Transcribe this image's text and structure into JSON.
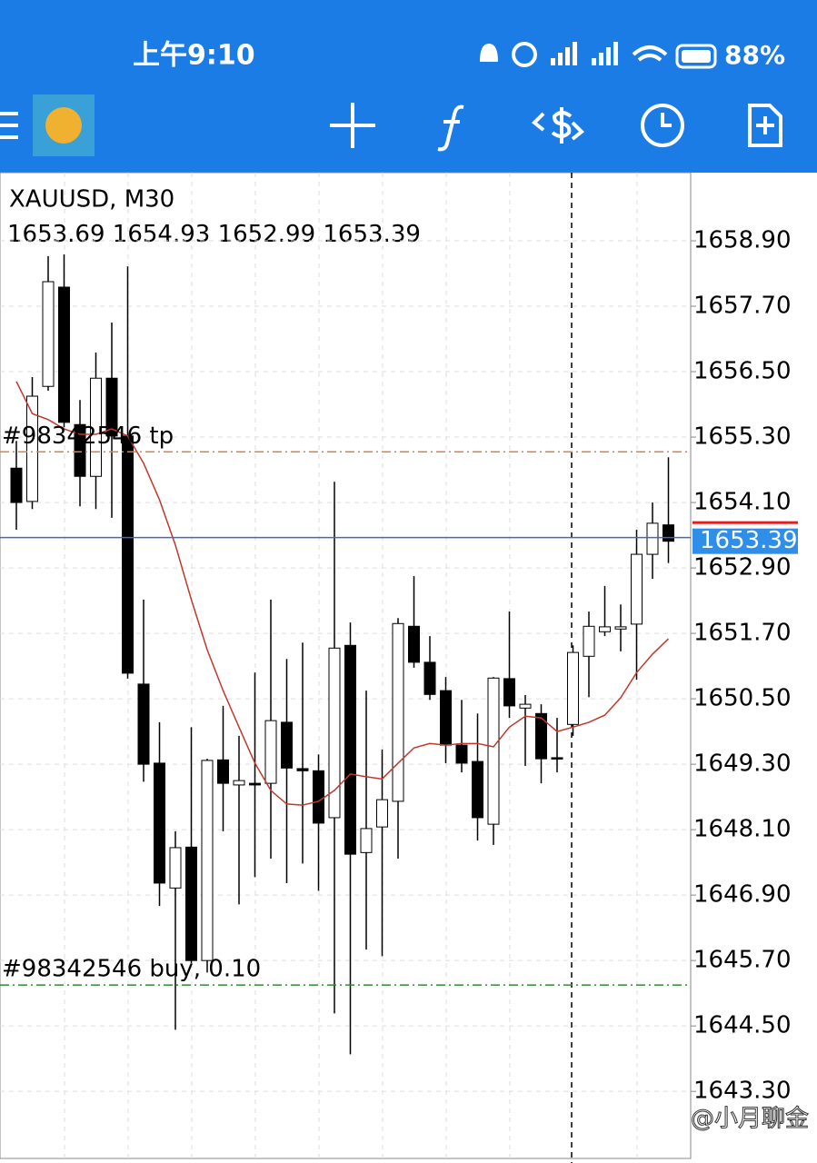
{
  "status_bar": {
    "time": "上午9:10",
    "battery": "88%"
  },
  "chart_data": {
    "type": "candlestick",
    "title": "XAUUSD, M30",
    "open": [
      1654.73,
      1654.12,
      1656.23,
      1658.05,
      1655.53,
      1654.58,
      1656.38,
      1655.32,
      1650.77,
      1649.32,
      1647.03,
      1647.78,
      1645.7,
      1649.38,
      1648.92,
      1648.95,
      1648.95,
      1650.07,
      1649.22,
      1649.18,
      1648.32,
      1651.48,
      1647.68,
      1648.15,
      1648.62,
      1651.83,
      1651.17,
      1650.65,
      1649.65,
      1649.35,
      1648.2,
      1650.87,
      1650.33,
      1650.23,
      1649.42,
      1650.03,
      1651.28,
      1651.73,
      1651.78,
      1651.87,
      1653.15,
      1653.69
    ],
    "high": [
      1655.23,
      1656.4,
      1658.62,
      1658.65,
      1655.98,
      1656.85,
      1657.4,
      1658.43,
      1652.32,
      1650.07,
      1648.07,
      1649.98,
      1649.4,
      1650.37,
      1649.82,
      1650.98,
      1652.32,
      1651.23,
      1651.53,
      1649.48,
      1654.48,
      1651.9,
      1650.65,
      1649.57,
      1651.98,
      1652.75,
      1651.65,
      1650.9,
      1650.48,
      1650.23,
      1650.9,
      1652.1,
      1650.57,
      1650.4,
      1650.15,
      1651.48,
      1652.1,
      1652.57,
      1652.23,
      1653.6,
      1654.1,
      1654.93
    ],
    "low": [
      1653.6,
      1653.98,
      1656.15,
      1655.48,
      1654.03,
      1653.98,
      1653.82,
      1650.87,
      1648.98,
      1646.7,
      1644.43,
      1645.65,
      1645.48,
      1648.07,
      1646.73,
      1647.23,
      1647.57,
      1647.12,
      1647.48,
      1646.98,
      1644.73,
      1643.98,
      1645.9,
      1645.78,
      1647.57,
      1651.07,
      1650.48,
      1649.32,
      1649.15,
      1647.9,
      1647.82,
      1650.15,
      1649.27,
      1648.95,
      1649.15,
      1649.82,
      1650.53,
      1651.65,
      1651.37,
      1650.85,
      1652.7,
      1652.99
    ],
    "close": [
      1654.1,
      1656.05,
      1658.15,
      1655.57,
      1654.58,
      1656.38,
      1655.32,
      1650.97,
      1649.3,
      1647.12,
      1647.77,
      1645.7,
      1649.37,
      1648.95,
      1649.0,
      1648.92,
      1650.1,
      1649.23,
      1649.18,
      1648.22,
      1651.43,
      1647.65,
      1648.12,
      1648.65,
      1651.88,
      1651.17,
      1650.58,
      1649.65,
      1649.32,
      1648.32,
      1650.88,
      1650.37,
      1650.4,
      1649.4,
      1649.4,
      1651.35,
      1651.83,
      1651.82,
      1651.82,
      1653.15,
      1653.72,
      1653.39
    ],
    "up_color": "#ffffff",
    "down_color": "#000000",
    "ma": {
      "color": "#c0392b",
      "values": [
        1656.32,
        1655.73,
        1655.62,
        1655.45,
        1655.35,
        1655.35,
        1655.45,
        1655.32,
        1654.82,
        1654.15,
        1653.32,
        1652.32,
        1651.4,
        1650.65,
        1649.98,
        1649.32,
        1648.82,
        1648.57,
        1648.55,
        1648.62,
        1648.82,
        1649.12,
        1649.07,
        1649.03,
        1649.32,
        1649.6,
        1649.68,
        1649.65,
        1649.68,
        1649.68,
        1649.62,
        1649.98,
        1650.18,
        1650.15,
        1649.9,
        1649.98,
        1650.07,
        1650.2,
        1650.52,
        1650.98,
        1651.32,
        1651.6
      ]
    },
    "ylim": [
      1642.07,
      1660.15
    ],
    "yticks": [
      {
        "value": 1658.9,
        "label": "1658.90"
      },
      {
        "value": 1657.7,
        "label": "1657.70"
      },
      {
        "value": 1656.5,
        "label": "1656.50"
      },
      {
        "value": 1655.3,
        "label": "1655.30"
      },
      {
        "value": 1654.1,
        "label": "1654.10"
      },
      {
        "value": 1652.9,
        "label": "1652.90"
      },
      {
        "value": 1651.7,
        "label": "1651.70"
      },
      {
        "value": 1650.5,
        "label": "1650.50"
      },
      {
        "value": 1649.3,
        "label": "1649.30"
      },
      {
        "value": 1648.1,
        "label": "1648.10"
      },
      {
        "value": 1646.9,
        "label": "1646.90"
      },
      {
        "value": 1645.7,
        "label": "1645.70"
      },
      {
        "value": 1644.5,
        "label": "1644.50"
      },
      {
        "value": 1643.3,
        "label": "1643.30"
      }
    ],
    "grid": true,
    "order_lines": [
      {
        "label": "#98342546 tp",
        "value": 1655.03,
        "color": "#e0804a"
      },
      {
        "label": "#98342546 buy, 0.10",
        "value": 1645.25,
        "color": "#2e8b2e"
      }
    ],
    "price_line_color": "#4a64c8",
    "price_label_color": "#2f8fe8"
  },
  "watermark": "@小月聊金"
}
